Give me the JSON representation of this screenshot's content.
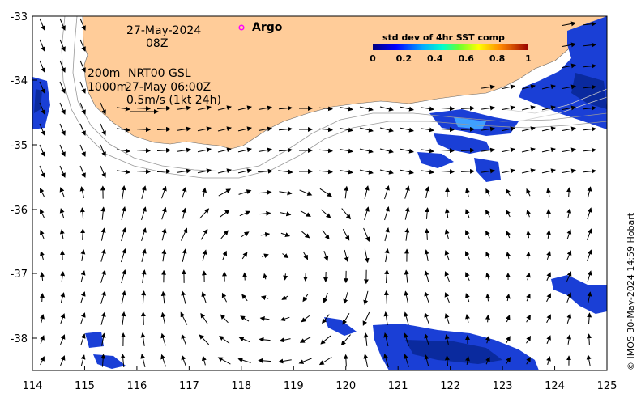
{
  "map": {
    "y_ticks": [
      "-33",
      "-34",
      "-35",
      "-36",
      "-37",
      "-38"
    ],
    "x_ticks": [
      "114",
      "115",
      "116",
      "117",
      "118",
      "119",
      "120",
      "121",
      "122",
      "123",
      "124",
      "125"
    ],
    "land_color": "#ffcc99",
    "sea_color": "#ffffff"
  },
  "annotations": {
    "date": "27-May-2024",
    "time": "08Z",
    "depth_200": "200m",
    "depth_1000": "1000m",
    "product": "NRT00 GSL",
    "product_time": "27-May 06:00Z",
    "scale": "0.5m/s (1kt 24h)",
    "argo_label": "Argo",
    "argo_color": "#ff00ff"
  },
  "colorbar": {
    "title": "std dev of 4hr SST comp",
    "ticks": [
      "0",
      "0.2",
      "0.4",
      "0.6",
      "0.8",
      "1"
    ]
  },
  "credit": "© IMOS 30-May-2024 14:59 Hobart"
}
